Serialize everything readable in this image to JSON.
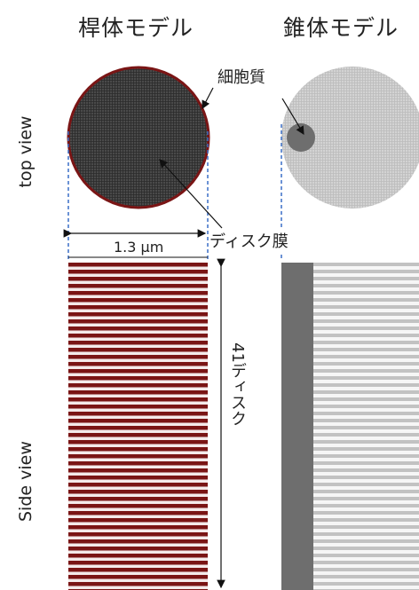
{
  "titles": {
    "rod": "桿体モデル",
    "cone": "錐体モデル"
  },
  "axis_labels": {
    "top": "top view",
    "side": "Side view"
  },
  "annotations": {
    "cytoplasm": "細胞質",
    "disk_membrane": "ディスク膜",
    "diameter": "1.3 μm",
    "disk_count": "41ディスク"
  },
  "colors": {
    "rod_fill": "#4a4a4a",
    "rod_outline": "#7a1515",
    "rod_stripe": "#7a1515",
    "cone_fill": "#d0d0d0",
    "cone_cytoplasm": "#6e6e6e",
    "cone_stripe": "#bdbdbd",
    "guide_dash": "#3a6fc7"
  }
}
